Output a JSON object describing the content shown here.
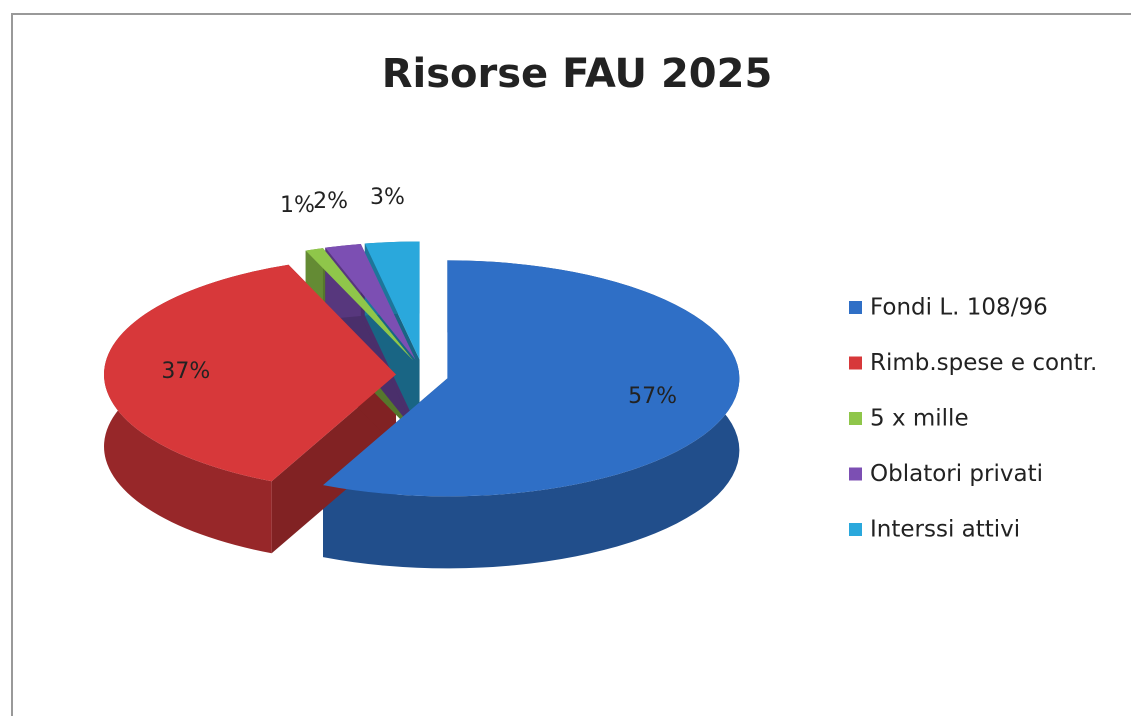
{
  "chart_data": {
    "type": "pie",
    "title": "Risorse FAU 2025",
    "categories": [
      "Fondi L. 108/96",
      "Rimb.spese e contr.",
      "5 x mille",
      "Oblatori privati",
      "Interssi attivi"
    ],
    "values": [
      57,
      37,
      1,
      2,
      3
    ],
    "value_labels": [
      "57%",
      "37%",
      "1%",
      "2%",
      "3%"
    ],
    "colors": [
      "#2f6fc6",
      "#d7383a",
      "#8fc64a",
      "#7c4fb3",
      "#2aa8dc"
    ],
    "legend": "right"
  }
}
